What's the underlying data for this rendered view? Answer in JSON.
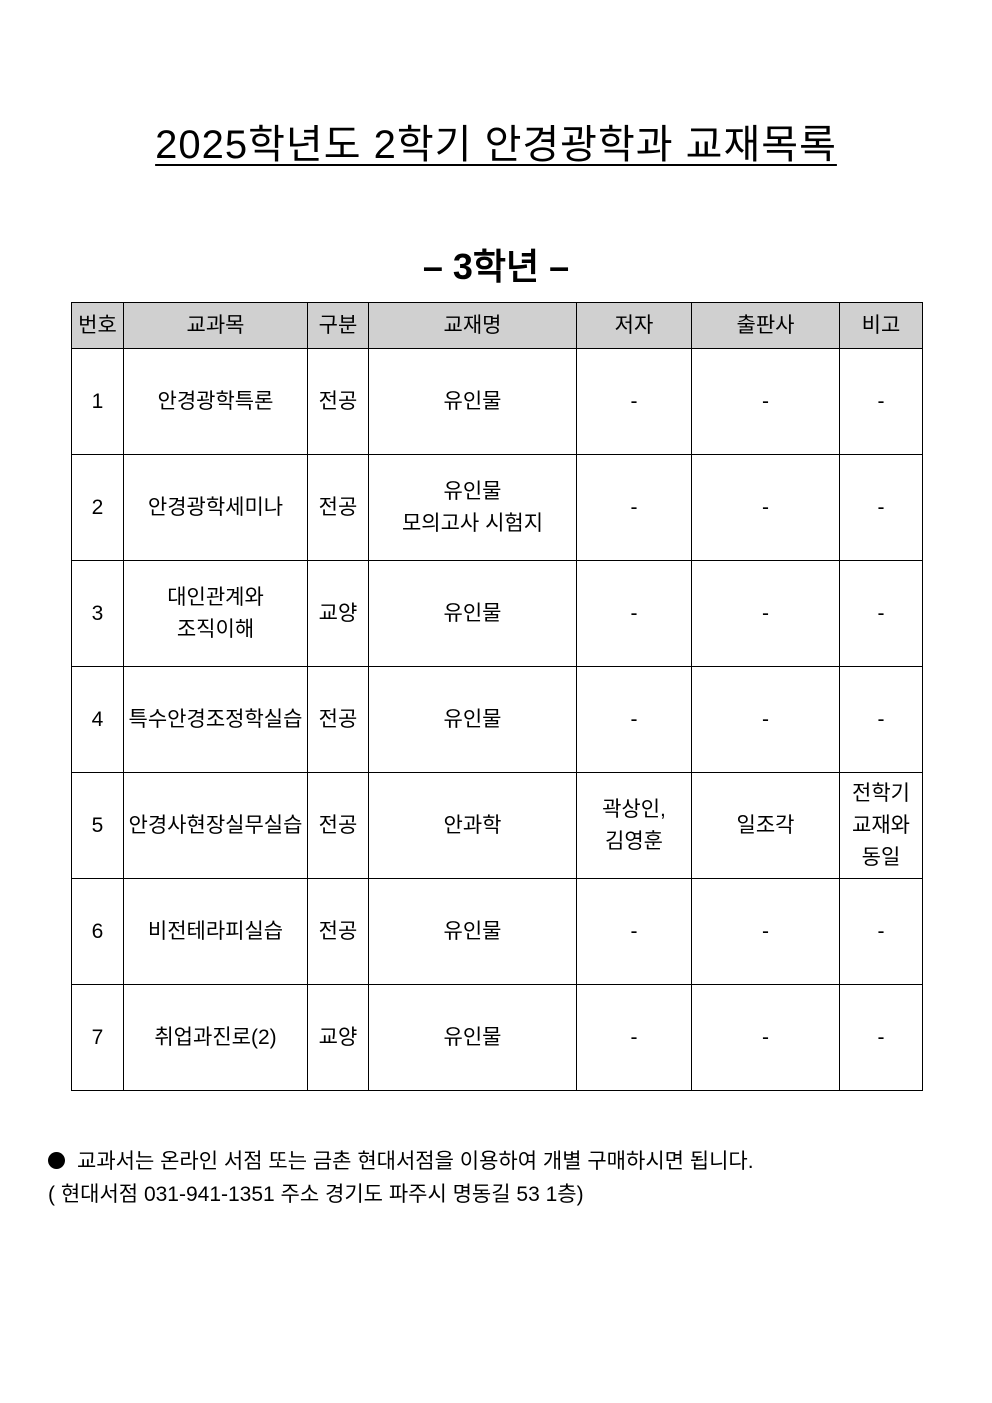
{
  "title": "2025학년도 2학기 안경광학과 교재목록",
  "subtitle": "– 3학년 –",
  "table": {
    "headers": [
      "번호",
      "교과목",
      "구분",
      "교재명",
      "저자",
      "출판사",
      "비고"
    ],
    "rows": [
      [
        "1",
        "안경광학특론",
        "전공",
        "유인물",
        "-",
        "-",
        "-"
      ],
      [
        "2",
        "안경광학세미나",
        "전공",
        "유인물\n모의고사 시험지",
        "-",
        "-",
        "-"
      ],
      [
        "3",
        "대인관계와\n조직이해",
        "교양",
        "유인물",
        "-",
        "-",
        "-"
      ],
      [
        "4",
        "특수안경조정학실습",
        "전공",
        "유인물",
        "-",
        "-",
        "-"
      ],
      [
        "5",
        "안경사현장실무실습",
        "전공",
        "안과학",
        "곽상인,\n김영훈",
        "일조각",
        "전학기\n교재와\n동일"
      ],
      [
        "6",
        "비전테라피실습",
        "전공",
        "유인물",
        "-",
        "-",
        "-"
      ],
      [
        "7",
        "취업과진로(2)",
        "교양",
        "유인물",
        "-",
        "-",
        "-"
      ]
    ]
  },
  "notes": {
    "line1": "교과서는 온라인 서점 또는 금촌 현대서점을 이용하여 개별 구매하시면 됩니다.",
    "line2": "( 현대서점 031-941-1351 주소 경기도 파주시 명동길 53 1층)"
  }
}
